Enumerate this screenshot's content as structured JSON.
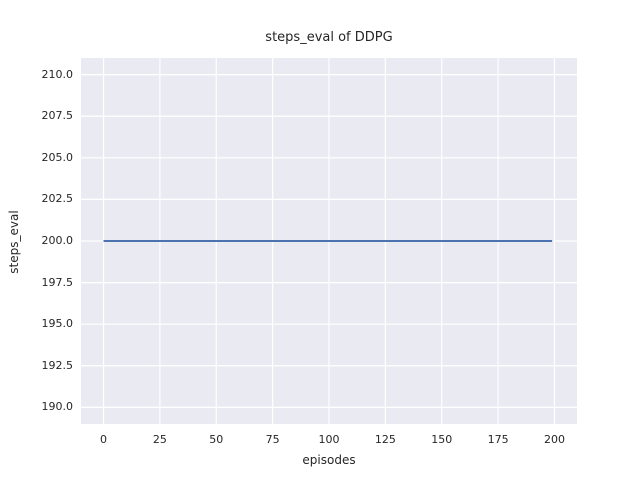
{
  "chart_data": {
    "type": "line",
    "title": "steps_eval of DDPG",
    "xlabel": "episodes",
    "ylabel": "steps_eval",
    "xlim": [
      -10,
      210
    ],
    "ylim": [
      189,
      211
    ],
    "xticks": [
      0,
      25,
      50,
      75,
      100,
      125,
      150,
      175,
      200
    ],
    "xtick_labels": [
      "0",
      "25",
      "50",
      "75",
      "100",
      "125",
      "150",
      "175",
      "200"
    ],
    "yticks": [
      190.0,
      192.5,
      195.0,
      197.5,
      200.0,
      202.5,
      205.0,
      207.5,
      210.0
    ],
    "ytick_labels": [
      "190.0",
      "192.5",
      "195.0",
      "197.5",
      "200.0",
      "202.5",
      "205.0",
      "207.5",
      "210.0"
    ],
    "grid": true,
    "legend": false,
    "series": [
      {
        "name": "steps_eval",
        "x": [
          0,
          199
        ],
        "y": [
          200,
          200
        ],
        "description_constant_value": 200
      }
    ],
    "colors": {
      "figure_bg": "#ffffff",
      "plot_bg": "#eaeaf2",
      "grid": "#ffffff",
      "line": "#4c72b0",
      "text": "#262626"
    }
  }
}
